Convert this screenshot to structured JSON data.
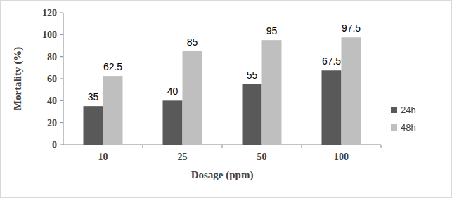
{
  "chart_data": {
    "type": "bar",
    "x_label": "Dosage (ppm)",
    "y_label": "Mortality (%)",
    "categories": [
      "10",
      "25",
      "50",
      "100"
    ],
    "series": [
      {
        "name": "24h",
        "color": "#595959",
        "values": [
          35,
          40,
          55,
          67.5
        ]
      },
      {
        "name": "48h",
        "color": "#bfbfbf",
        "values": [
          62.5,
          85,
          95,
          97.5
        ]
      }
    ],
    "ylim": [
      0,
      120
    ],
    "yticks": [
      0,
      20,
      40,
      60,
      80,
      100,
      120
    ],
    "grid": false,
    "legend": "right",
    "data_labels": true
  }
}
